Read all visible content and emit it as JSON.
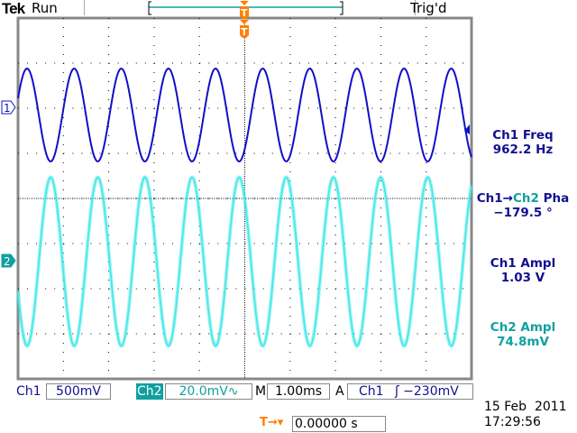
{
  "header": {
    "brand": "Tek",
    "state": "Run",
    "trigger_status": "Trig'd"
  },
  "colors": {
    "ch1": "#1010c8",
    "ch2": "#40e8e8",
    "ch2_label": "#10a0a0",
    "trigger": "#ff7f00",
    "grid": "#000000"
  },
  "markers": {
    "ch1": "1",
    "ch2": "2",
    "trigger": "T"
  },
  "measurements": [
    {
      "label": "Ch1 Freq",
      "value": "962.2 Hz"
    },
    {
      "label_a": "Ch1",
      "arrow": "→",
      "label_b": "Ch2",
      "label_c": " Pha",
      "value": "−179.5 °"
    },
    {
      "label": "Ch1 Ampl",
      "value": "1.03 V"
    },
    {
      "label": "Ch2 Ampl",
      "value": "74.8mV"
    }
  ],
  "status": {
    "ch1_label": "Ch1",
    "ch1_scale": "500mV",
    "ch2_label": "Ch2",
    "ch2_scale": "20.0mV",
    "ch2_bw_icon": "bandwidth-limit-icon",
    "ch2_bw_glyph": "∿",
    "time_label": "M",
    "time_scale": "1.00ms",
    "trigger_mode": "A",
    "trigger_source": "Ch1",
    "trigger_slope_glyph": "ʃ",
    "trigger_level": "−230mV",
    "trigger_pos_label": "T→▾",
    "trigger_position": "0.00000 s"
  },
  "datetime": {
    "date": "15 Feb  2011",
    "time": "17:29:56"
  },
  "waveforms": {
    "frequency_hz": 962.2,
    "phase_deg": -179.5,
    "ch1_ampl_v": 1.03,
    "ch2_ampl_mv": 74.8,
    "time_per_div_ms": 1.0,
    "ch1_v_per_div": 0.5,
    "ch2_mv_per_div": 20.0,
    "ch1_offset_div": 2.0,
    "ch2_offset_div": -1.4,
    "divisions_x": 10,
    "divisions_y": 8
  }
}
